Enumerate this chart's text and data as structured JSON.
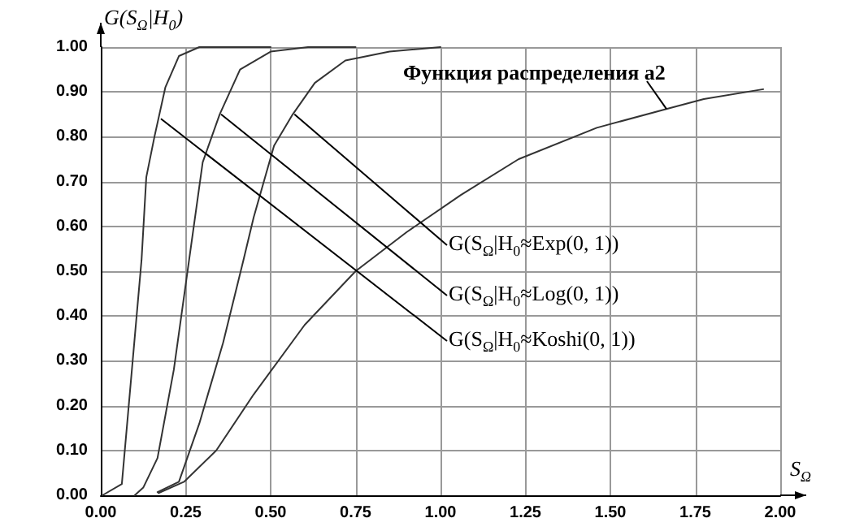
{
  "chart_data": {
    "type": "line",
    "xlabel": "S$_{Ω}$",
    "ylabel": "G(S$_{Ω}$|H$_{0}$)",
    "xlim": [
      0,
      2
    ],
    "ylim": [
      0,
      1
    ],
    "xticks": [
      {
        "value": 0,
        "label": "0.00"
      },
      {
        "value": 0.25,
        "label": "0.25"
      },
      {
        "value": 0.5,
        "label": "0.50"
      },
      {
        "value": 0.75,
        "label": "0.75"
      },
      {
        "value": 1,
        "label": "1.00"
      },
      {
        "value": 1.25,
        "label": "1.25"
      },
      {
        "value": 1.5,
        "label": "1.50"
      },
      {
        "value": 1.75,
        "label": "1.75"
      },
      {
        "value": 2,
        "label": "2.00"
      }
    ],
    "yticks": [
      {
        "value": 0,
        "label": "0.00"
      },
      {
        "value": 0.1,
        "label": "0.10"
      },
      {
        "value": 0.2,
        "label": "0.20"
      },
      {
        "value": 0.3,
        "label": "0.30"
      },
      {
        "value": 0.4,
        "label": "0.40"
      },
      {
        "value": 0.5,
        "label": "0.50"
      },
      {
        "value": 0.6,
        "label": "0.60"
      },
      {
        "value": 0.7,
        "label": "0.70"
      },
      {
        "value": 0.8,
        "label": "0.80"
      },
      {
        "value": 0.9,
        "label": "0.90"
      },
      {
        "value": 1,
        "label": "1.00"
      }
    ],
    "grid": true,
    "marker": "none",
    "line_style": "solid",
    "series": [
      {
        "color": "#333333",
        "x": [
          0.005,
          0.062,
          0.12,
          0.134,
          0.158,
          0.19,
          0.23,
          0.29,
          0.5
        ],
        "values": [
          0,
          0.025,
          0.525,
          0.71,
          0.8,
          0.91,
          0.98,
          1,
          1
        ]
      },
      {
        "color": "#333333",
        "x": [
          0.1,
          0.125,
          0.167,
          0.215,
          0.26,
          0.3,
          0.35,
          0.41,
          0.5,
          0.61,
          0.75
        ],
        "values": [
          0,
          0.017,
          0.083,
          0.28,
          0.525,
          0.743,
          0.85,
          0.95,
          0.99,
          1,
          1
        ]
      },
      {
        "color": "#333333",
        "x": [
          0.167,
          0.23,
          0.29,
          0.36,
          0.42,
          0.45,
          0.51,
          0.565,
          0.63,
          0.72,
          0.85,
          1
        ],
        "values": [
          0.007,
          0.03,
          0.16,
          0.34,
          0.525,
          0.62,
          0.78,
          0.85,
          0.92,
          0.97,
          0.99,
          1
        ]
      },
      {
        "color": "#333333",
        "x": [
          0.17,
          0.245,
          0.34,
          0.45,
          0.6,
          0.75,
          0.9,
          1.06,
          1.23,
          1.46,
          1.665,
          1.775,
          1.95
        ],
        "values": [
          0.005,
          0.03,
          0.1,
          0.225,
          0.38,
          0.5,
          0.587,
          0.67,
          0.75,
          0.82,
          0.862,
          0.884,
          0.906
        ]
      }
    ],
    "annotations": [
      {
        "text": "Функция распределения a2",
        "x": 1.665,
        "y": 0.862
      },
      {
        "text": "G(S$_{Ω}$|H$_{0}$≈Exp(0, 1))",
        "x": 0.57,
        "y": 0.85
      },
      {
        "text": "G(S$_{Ω}$|H$_{0}$≈Log(0, 1))",
        "x": 0.354,
        "y": 0.85
      },
      {
        "text": "G(S$_{Ω}$|H$_{0}$≈Koshi(0, 1))",
        "x": 0.177,
        "y": 0.84
      }
    ]
  }
}
